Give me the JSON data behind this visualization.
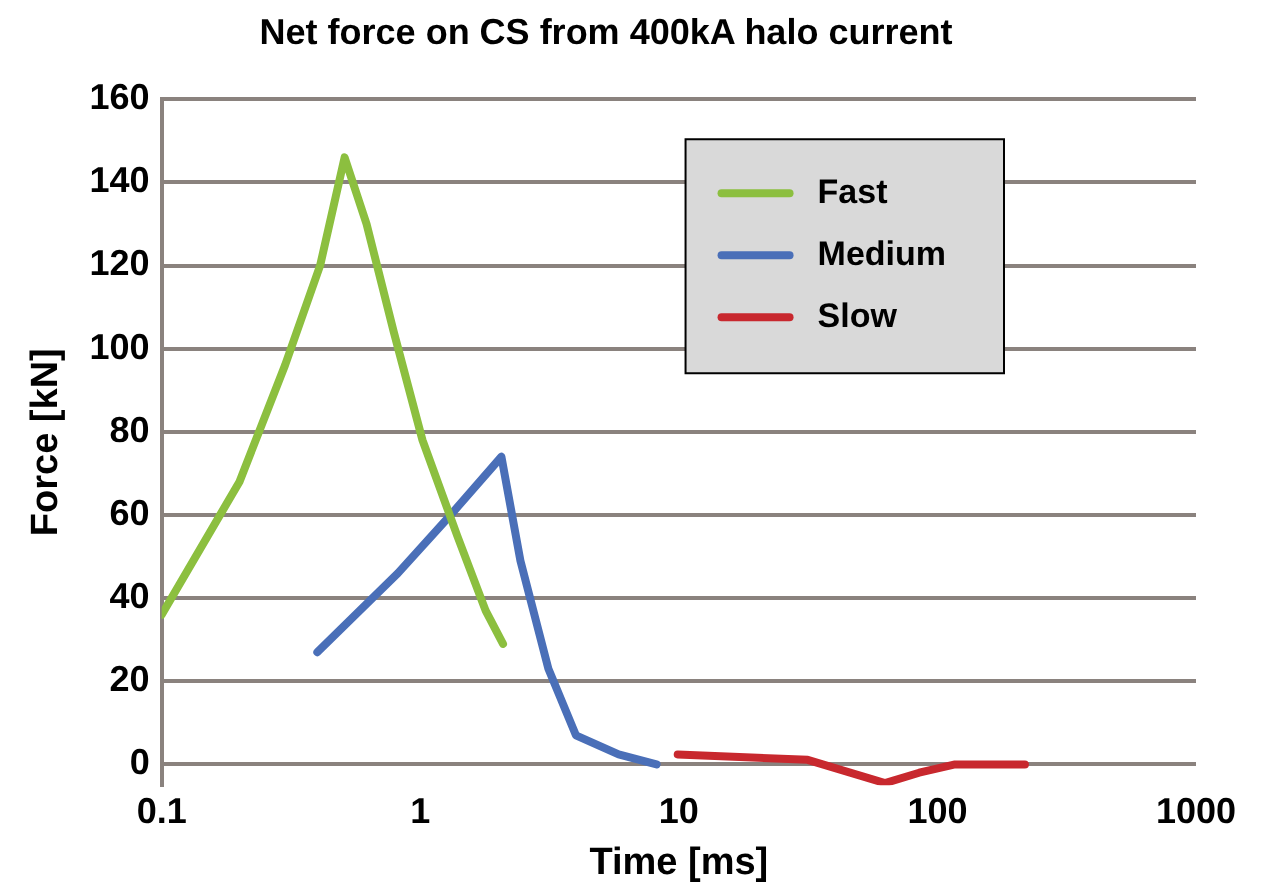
{
  "chart_data": {
    "type": "line",
    "title": "Net force on CS from 400kA halo current",
    "xlabel": "Time [ms]",
    "ylabel": "Force [kN]",
    "log": "x",
    "xlim": [
      0.1,
      1000
    ],
    "xticks": [
      0.1,
      1,
      10,
      100,
      1000
    ],
    "ylim": [
      -5,
      160
    ],
    "yticks": [
      0,
      20,
      40,
      60,
      80,
      100,
      120,
      140,
      160
    ],
    "grid": "y",
    "legend": "top right",
    "marker": "none",
    "line_style": "solid",
    "series": [
      {
        "name": "Fast",
        "color": "#8cbf3f",
        "x": [
          0.1,
          0.2,
          0.3,
          0.41,
          0.51,
          0.62,
          0.79,
          1.02,
          1.39,
          1.79,
          2.09
        ],
        "values": [
          36,
          68,
          96,
          120,
          146,
          130,
          104,
          78,
          55,
          37,
          29
        ]
      },
      {
        "name": "Medium",
        "color": "#4a6fb8",
        "x": [
          0.4,
          0.82,
          1.31,
          2.06,
          2.44,
          3.13,
          4.0,
          5.85,
          8.2
        ],
        "values": [
          27,
          46,
          60,
          74,
          49,
          23,
          7,
          2.4,
          0
        ]
      },
      {
        "name": "Slow",
        "color": "#c8282e",
        "x": [
          9.9,
          31.5,
          62.7,
          85,
          117,
          218
        ],
        "values": [
          2.4,
          1.1,
          -4.5,
          -2,
          0,
          0
        ]
      }
    ]
  }
}
